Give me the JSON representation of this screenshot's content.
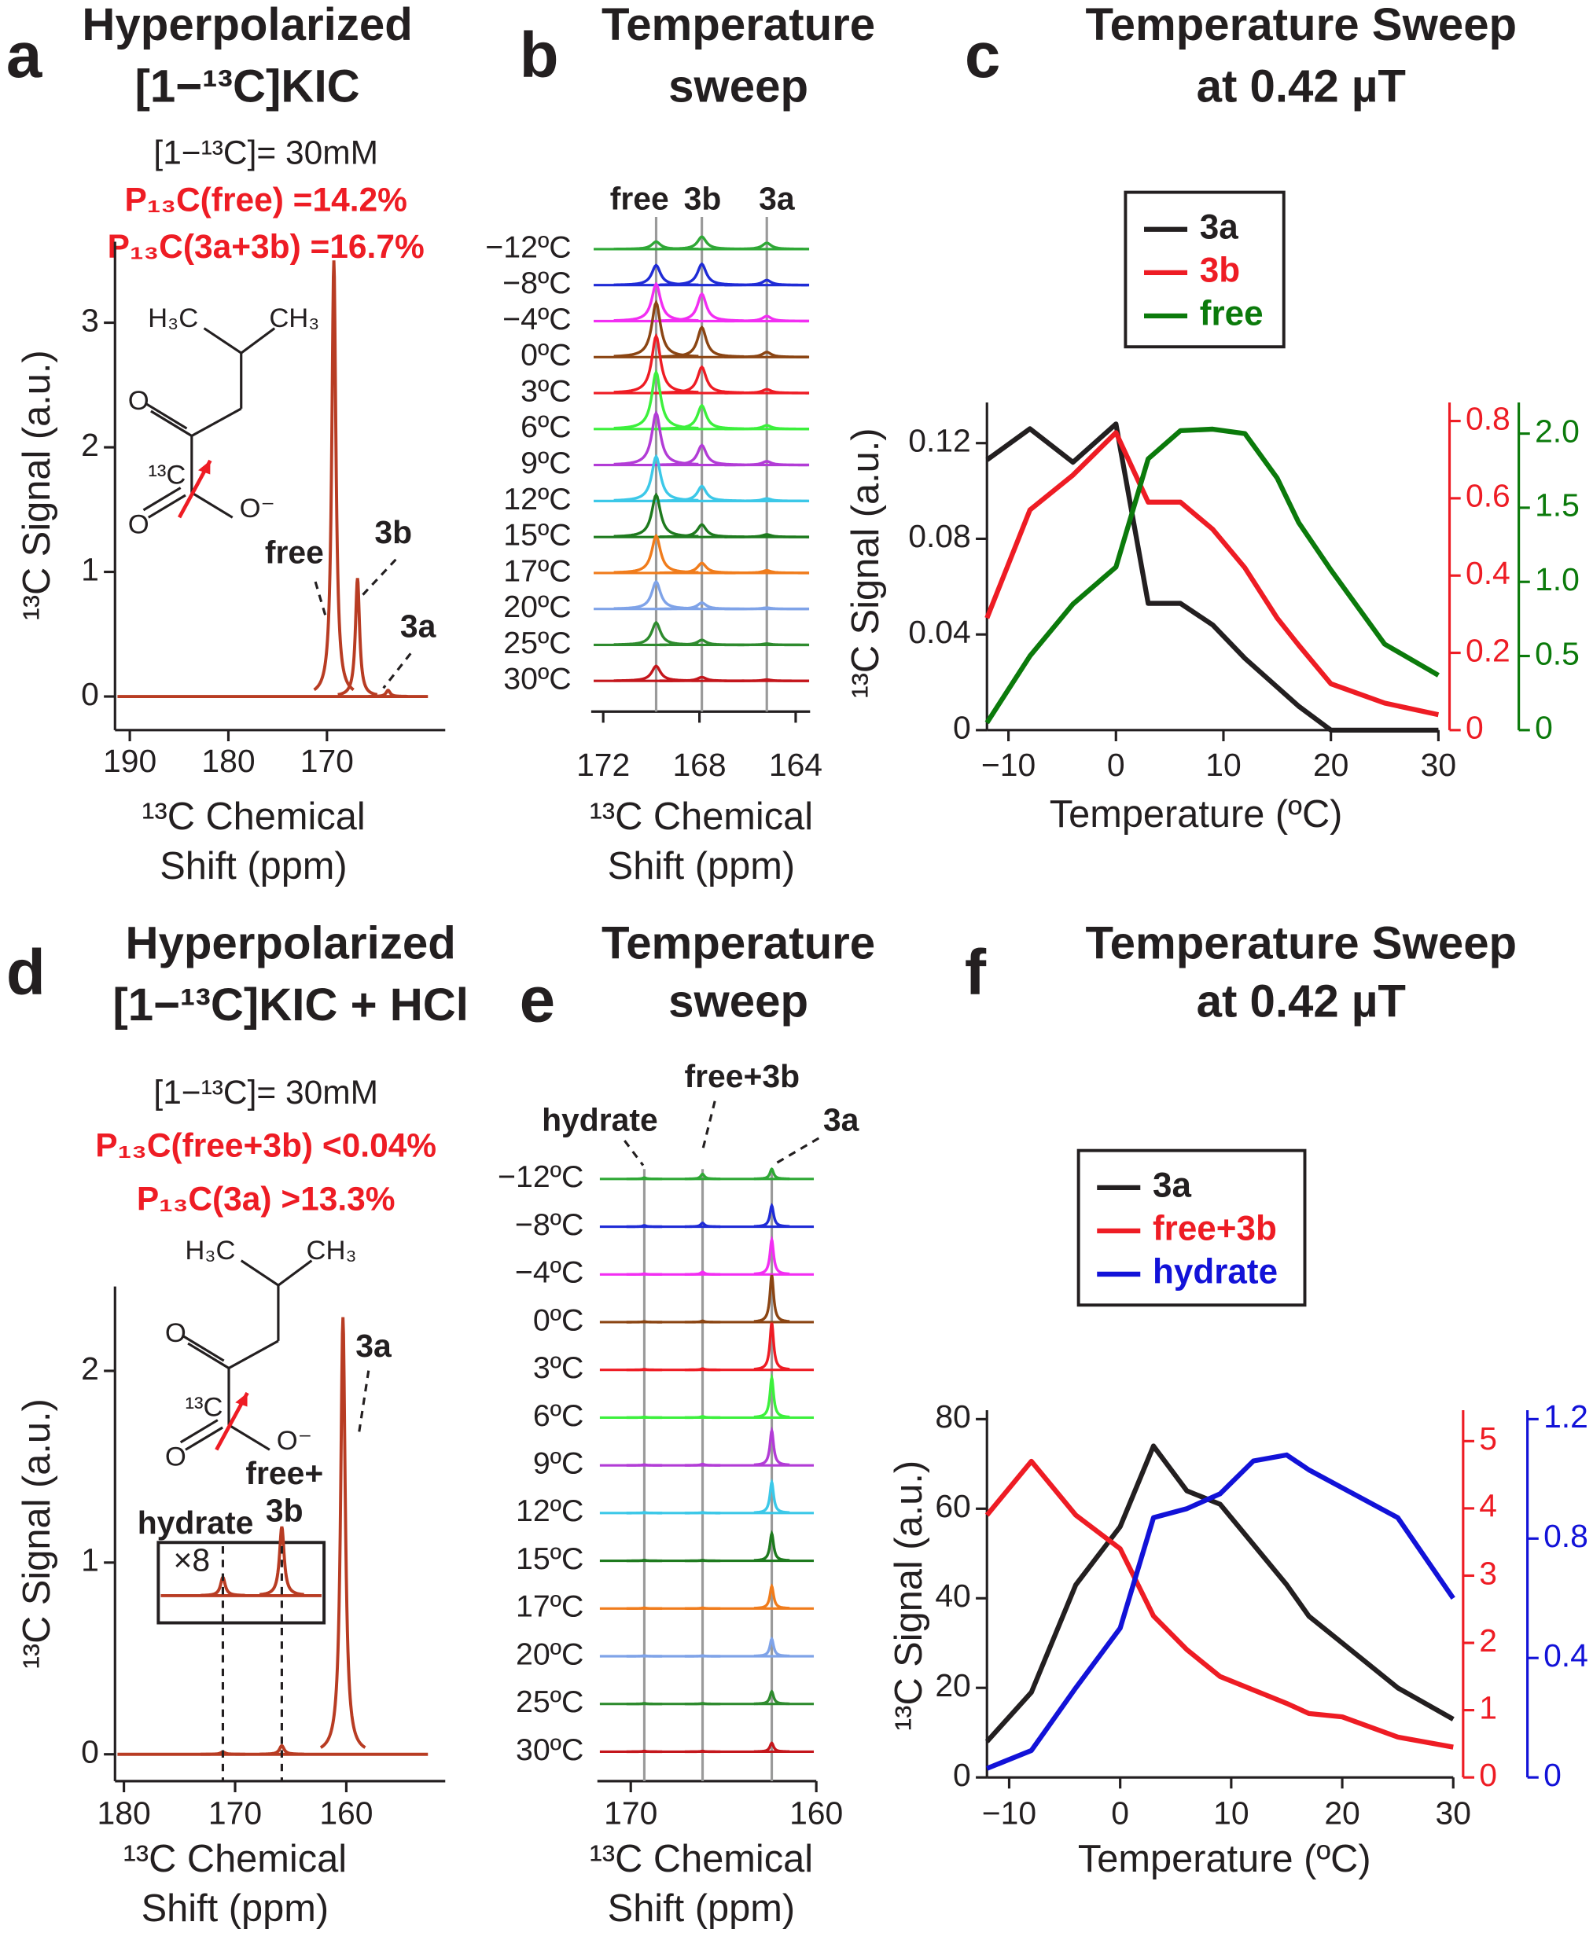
{
  "chart_data": [
    {
      "type": "spectrum",
      "panel": "a",
      "title": [
        "Hyperpolarized",
        "[1−¹³C]KIC"
      ],
      "notes": [
        {
          "text": "[1−¹³C]= 30mM",
          "color": "#231f20"
        },
        {
          "text": "P₁₃C(free) =14.2%",
          "color": "#ee1c24"
        },
        {
          "text": "P₁₃C(3a+3b) =16.7%",
          "color": "#ee1c24"
        }
      ],
      "molecule": [
        "H₃C",
        "CH₃",
        "O",
        "¹³C",
        "O",
        "O⁻"
      ],
      "xlabel": [
        "¹³C Chemical",
        "Shift (ppm)"
      ],
      "ylabel": "¹³C Signal (a.u.)",
      "xlim": [
        191.5,
        158
      ],
      "xticks": [
        190,
        180,
        170
      ],
      "ylim": [
        -0.27,
        3.65
      ],
      "yticks": [
        0,
        1,
        2,
        3
      ],
      "color": "#b83c23",
      "peaks": [
        {
          "label": [
            "free"
          ],
          "ppm": 169.3,
          "height": 3.5
        },
        {
          "label": [
            "3b"
          ],
          "ppm": 166.9,
          "height": 0.95
        },
        {
          "label": [
            "3a"
          ],
          "ppm": 163.8,
          "height": 0.05
        }
      ]
    },
    {
      "type": "stack",
      "panel": "b",
      "title": [
        "Temperature",
        "sweep"
      ],
      "xlabel": [
        "¹³C Chemical",
        "Shift (ppm)"
      ],
      "xlim": [
        172.5,
        163.4
      ],
      "xticks": [
        172,
        168,
        164
      ],
      "categories": [
        "−12ºC",
        "−8ºC",
        "−4ºC",
        "0ºC",
        "3ºC",
        "6ºC",
        "9ºC",
        "12ºC",
        "15ºC",
        "17ºC",
        "20ºC",
        "25ºC",
        "30ºC"
      ],
      "colors": [
        "#2fa836",
        "#1f2bd6",
        "#f22ef2",
        "#8b4513",
        "#ee1c24",
        "#3cf03c",
        "#b23cd6",
        "#3cc8e8",
        "#1e7a1e",
        "#f07c1c",
        "#7fa3e8",
        "#2e8b2e",
        "#c4161c"
      ],
      "series": [
        {
          "name": "free",
          "ppm": 169.8,
          "values": [
            6,
            16,
            30,
            44,
            46,
            46,
            42,
            36,
            34,
            30,
            22,
            18,
            12
          ]
        },
        {
          "name": "3b",
          "ppm": 167.9,
          "values": [
            10,
            17,
            22,
            24,
            21,
            19,
            16,
            12,
            10,
            8,
            5,
            4,
            3
          ]
        },
        {
          "name": "3a",
          "ppm": 165.2,
          "values": [
            5,
            4,
            4,
            4,
            3,
            3,
            3,
            2,
            2,
            2,
            1,
            1,
            1
          ]
        }
      ]
    },
    {
      "type": "line",
      "panel": "c",
      "title": [
        "Temperature Sweep",
        "at 0.42 µT"
      ],
      "xlabel": "Temperature (ºC)",
      "ylabel": "¹³C Signal (a.u.)",
      "x": [
        -12,
        -8,
        -4,
        0,
        3,
        6,
        9,
        12,
        15,
        17,
        20,
        25,
        30
      ],
      "xlim": [
        -12,
        30
      ],
      "xticks": [
        {
          "value": -10,
          "label": "−10"
        },
        0,
        10,
        20,
        30
      ],
      "ylim": [
        0,
        0.137
      ],
      "yticks": [
        0,
        0.04,
        0.08,
        0.12
      ],
      "y2lim": [
        0,
        0.848
      ],
      "y2ticks": [
        0,
        0.2,
        0.4,
        0.6,
        0.8
      ],
      "y3lim": [
        0,
        2.21
      ],
      "y3ticks": [
        0,
        0.5,
        {
          "value": 1,
          "label": "1.0"
        },
        1.5,
        {
          "value": 2,
          "label": "2.0"
        }
      ],
      "series": [
        {
          "name": "3a",
          "color": "#231f20",
          "axis": "y",
          "values": [
            0.113,
            0.126,
            0.112,
            0.128,
            0.053,
            0.053,
            0.044,
            0.03,
            0.018,
            0.01,
            0,
            0,
            0
          ]
        },
        {
          "name": "3b",
          "color": "#ee1c24",
          "axis": "y2",
          "values": [
            0.29,
            0.57,
            0.66,
            0.77,
            0.59,
            0.59,
            0.52,
            0.42,
            0.29,
            0.22,
            0.12,
            0.07,
            0.04
          ]
        },
        {
          "name": "free",
          "color": "#0b7a0b",
          "axis": "y3",
          "values": [
            0.05,
            0.5,
            0.85,
            1.1,
            1.83,
            2.02,
            2.03,
            2.0,
            1.7,
            1.4,
            1.08,
            0.58,
            0.37
          ]
        }
      ]
    },
    {
      "type": "spectrum",
      "panel": "d",
      "title": [
        "Hyperpolarized",
        "[1−¹³C]KIC + HCl"
      ],
      "notes": [
        {
          "text": "[1−¹³C]= 30mM",
          "color": "#231f20"
        },
        {
          "text": "P₁₃C(free+3b) <0.04%",
          "color": "#ee1c24"
        },
        {
          "text": "P₁₃C(3a) >13.3%",
          "color": "#ee1c24"
        }
      ],
      "molecule": [
        "H₃C",
        "CH₃",
        "O",
        "¹³C",
        "O",
        "O⁻"
      ],
      "xlabel": [
        "¹³C Chemical",
        "Shift (ppm)"
      ],
      "ylabel": "¹³C Signal (a.u.)",
      "xlim": [
        180.8,
        151.1
      ],
      "xticks": [
        180,
        170,
        160
      ],
      "ylim": [
        -0.14,
        2.44
      ],
      "yticks": [
        0,
        1,
        2
      ],
      "color": "#b83c23",
      "peaks": [
        {
          "label": [
            "3a"
          ],
          "ppm": 160.3,
          "height": 2.28
        },
        {
          "label": [
            "free+",
            "3b"
          ],
          "ppm": 165.8,
          "height": 0.045
        },
        {
          "label": [
            "hydrate"
          ],
          "ppm": 171.1,
          "height": 0.012
        }
      ],
      "inset": {
        "label": "×8",
        "factor": 8
      }
    },
    {
      "type": "stack",
      "panel": "e",
      "title": [
        "Temperature",
        "sweep"
      ],
      "xlabel": [
        "¹³C Chemical",
        "Shift (ppm)"
      ],
      "xlim": [
        171.8,
        160
      ],
      "xticks": [
        170,
        160
      ],
      "categories": [
        "−12ºC",
        "−8ºC",
        "−4ºC",
        "0ºC",
        "3ºC",
        "6ºC",
        "9ºC",
        "12ºC",
        "15ºC",
        "17ºC",
        "20ºC",
        "25ºC",
        "30ºC"
      ],
      "colors": [
        "#2fa836",
        "#1f2bd6",
        "#f22ef2",
        "#8b4513",
        "#ee1c24",
        "#3cf03c",
        "#b23cd6",
        "#3cc8e8",
        "#1e7a1e",
        "#f07c1c",
        "#7fa3e8",
        "#2e8b2e",
        "#c4161c"
      ],
      "series": [
        {
          "name": "hydrate",
          "ppm": 169.27,
          "values": [
            1,
            1,
            0.5,
            0.5,
            0.5,
            0.5,
            0.5,
            0.5,
            0.5,
            0.5,
            0.5,
            0.5,
            0.5
          ]
        },
        {
          "name": "free+3b",
          "ppm": 166.13,
          "values": [
            4,
            3,
            2,
            1,
            1,
            1,
            1,
            0.5,
            0.5,
            0.5,
            0.5,
            0.5,
            0.5
          ]
        },
        {
          "name": "3a",
          "ppm": 162.4,
          "values": [
            8,
            17,
            28,
            38,
            38,
            32,
            28,
            25,
            22,
            18,
            14,
            10,
            7
          ]
        }
      ]
    },
    {
      "type": "line",
      "panel": "f",
      "title": [
        "Temperature Sweep",
        "at 0.42 µT"
      ],
      "xlabel": "Temperature (ºC)",
      "ylabel": "¹³C Signal (a.u.)",
      "x": [
        -12,
        -8,
        -4,
        0,
        3,
        6,
        9,
        12,
        15,
        17,
        20,
        25,
        30
      ],
      "xlim": [
        -12,
        30
      ],
      "xticks": [
        {
          "value": -10,
          "label": "−10"
        },
        0,
        10,
        20,
        30
      ],
      "ylim": [
        0,
        82
      ],
      "yticks": [
        0,
        20,
        40,
        60,
        80
      ],
      "y2lim": [
        0,
        5.46
      ],
      "y2ticks": [
        0,
        1,
        2,
        3,
        4,
        5
      ],
      "y3lim": [
        0,
        1.23
      ],
      "y3ticks": [
        0,
        0.4,
        0.8,
        1.2
      ],
      "series": [
        {
          "name": "3a",
          "color": "#231f20",
          "axis": "y",
          "values": [
            8,
            19,
            43,
            56,
            74,
            64,
            61,
            52,
            43,
            36,
            30,
            20,
            13
          ]
        },
        {
          "name": "free+3b",
          "color": "#ee1c24",
          "axis": "y2",
          "values": [
            3.9,
            4.7,
            3.9,
            3.4,
            2.4,
            1.9,
            1.5,
            1.3,
            1.1,
            0.95,
            0.9,
            0.6,
            0.45
          ]
        },
        {
          "name": "hydrate",
          "color": "#1212d8",
          "axis": "y3",
          "values": [
            0.03,
            0.09,
            0.3,
            0.5,
            0.87,
            0.9,
            0.95,
            1.06,
            1.08,
            1.03,
            0.97,
            0.87,
            0.6
          ]
        }
      ]
    }
  ]
}
